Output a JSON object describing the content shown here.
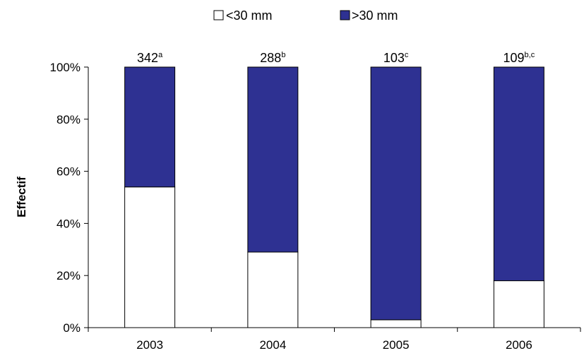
{
  "chart_data": {
    "type": "bar",
    "stacked": true,
    "categories": [
      "2003",
      "2004",
      "2005",
      "2006"
    ],
    "series": [
      {
        "name": "<30 mm",
        "color": "#ffffff",
        "values": [
          54,
          29,
          3,
          18
        ]
      },
      {
        "name": ">30 mm",
        "color": "#2e3192",
        "values": [
          46,
          71,
          97,
          82
        ]
      }
    ],
    "totals": [
      {
        "value": "342",
        "sup": "a"
      },
      {
        "value": "288",
        "sup": "b"
      },
      {
        "value": "103",
        "sup": "c"
      },
      {
        "value": "109",
        "sup": "b,c"
      }
    ],
    "ylabel": "Effectif",
    "yticks": [
      "0%",
      "20%",
      "40%",
      "60%",
      "80%",
      "100%"
    ],
    "ylim": [
      0,
      100
    ],
    "legend_position": "top-center",
    "grid": false
  }
}
